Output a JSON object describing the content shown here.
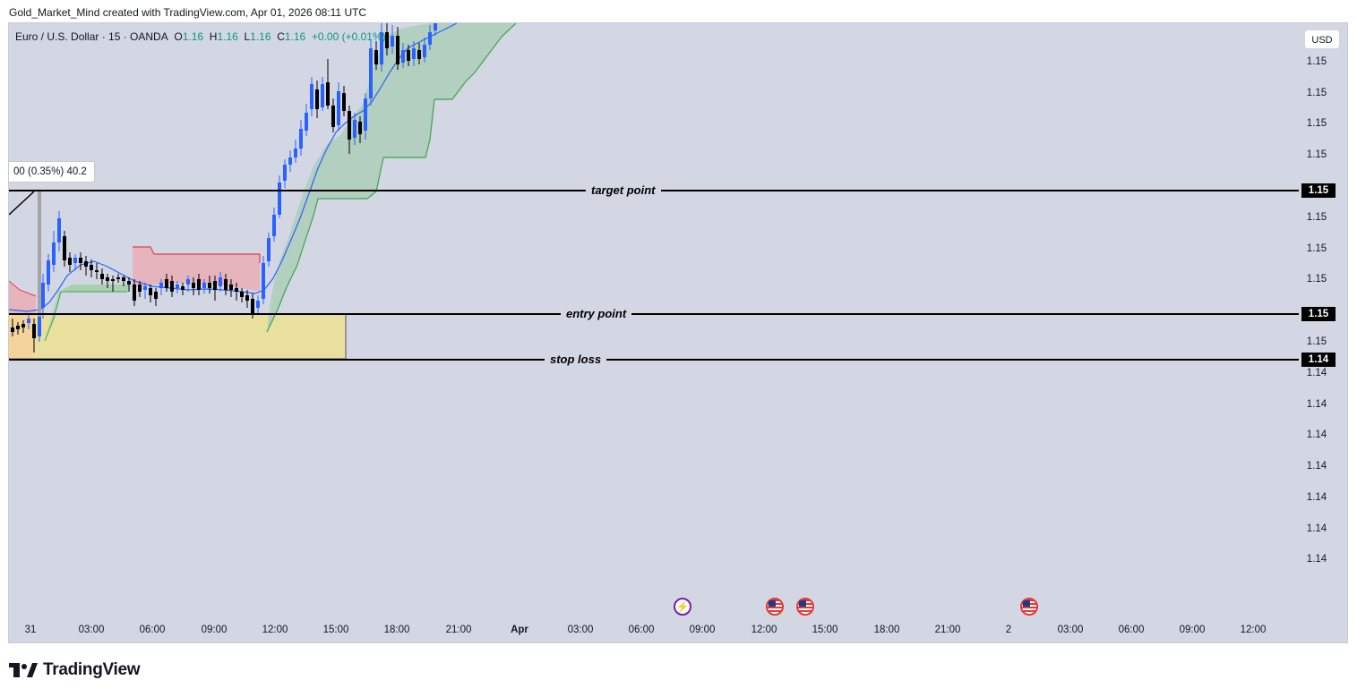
{
  "credit": "Gold_Market_Mind created with TradingView.com, Apr 01, 2026 08:11 UTC",
  "symbol": {
    "name": "Euro / U.S. Dollar · 15 · OANDA",
    "o_label": "O",
    "o": "1.16",
    "h_label": "H",
    "h": "1.16",
    "l_label": "L",
    "l": "1.16",
    "c_label": "C",
    "c": "1.16",
    "change": "+0.00 (+0.01%)"
  },
  "currency_button": "USD",
  "measure_label": "00 (0.35%) 40.2",
  "levels": {
    "target": {
      "label": "target point",
      "price": "1.15"
    },
    "entry": {
      "label": "entry point",
      "price": "1.15"
    },
    "stop": {
      "label": "stop loss",
      "price": "1.14"
    }
  },
  "y_axis": [
    "1.15",
    "1.15",
    "1.15",
    "1.15",
    "1.15",
    "1.15",
    "1.15",
    "1.15",
    "1.14",
    "1.14",
    "1.14",
    "1.14",
    "1.14",
    "1.14",
    "1.14"
  ],
  "x_axis": [
    "31",
    "03:00",
    "06:00",
    "09:00",
    "12:00",
    "15:00",
    "18:00",
    "21:00",
    "Apr",
    "03:00",
    "06:00",
    "09:00",
    "12:00",
    "15:00",
    "18:00",
    "21:00",
    "2",
    "03:00",
    "06:00",
    "09:00",
    "12:00"
  ],
  "events": [
    "flash-event-icon",
    "us-flag-icon",
    "us-flag-icon",
    "us-flag-icon"
  ],
  "brand": "TradingView",
  "colors": {
    "background": "#d3d7e3",
    "bull_candle": "#2962ff",
    "bear_candle": "#000000",
    "ema": "#2962ff",
    "cloud_up": "#8fbf95",
    "cloud_down": "#e6a5ad",
    "entry_zone": "#f2e29a"
  }
}
